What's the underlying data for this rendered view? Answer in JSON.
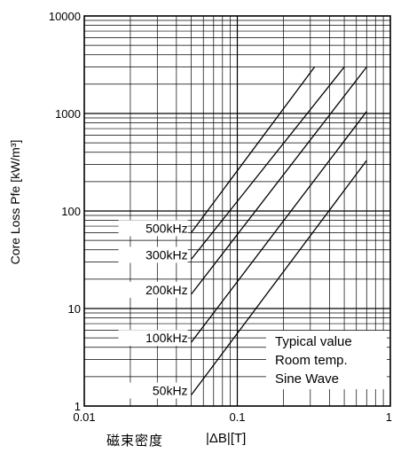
{
  "chart_data": {
    "type": "line",
    "x_scale": "log",
    "y_scale": "log",
    "xlim": [
      0.01,
      1
    ],
    "ylim": [
      1,
      10000
    ],
    "x_ticks": [
      "0.01",
      "0.1",
      "1"
    ],
    "y_ticks": [
      "10000",
      "1000",
      "100",
      "10",
      "1"
    ],
    "ylabel": "Core Loss Pfe [kW/m³]",
    "xlabel_jp": "磁束密度",
    "xlabel_unit": "|ΔB|[T]",
    "grid": true,
    "series": [
      {
        "name": "500kHz",
        "x": [
          0.05,
          0.32
        ],
        "y": [
          60,
          3000
        ]
      },
      {
        "name": "300kHz",
        "x": [
          0.05,
          0.5
        ],
        "y": [
          32,
          3000
        ]
      },
      {
        "name": "200kHz",
        "x": [
          0.05,
          0.7
        ],
        "y": [
          14,
          3000
        ]
      },
      {
        "name": "100kHz",
        "x": [
          0.05,
          0.7
        ],
        "y": [
          4.5,
          1050
        ]
      },
      {
        "name": "50kHz",
        "x": [
          0.05,
          0.7
        ],
        "y": [
          1.3,
          330
        ]
      }
    ],
    "legend_note": [
      "Typical value",
      "Room temp.",
      "Sine Wave"
    ]
  }
}
